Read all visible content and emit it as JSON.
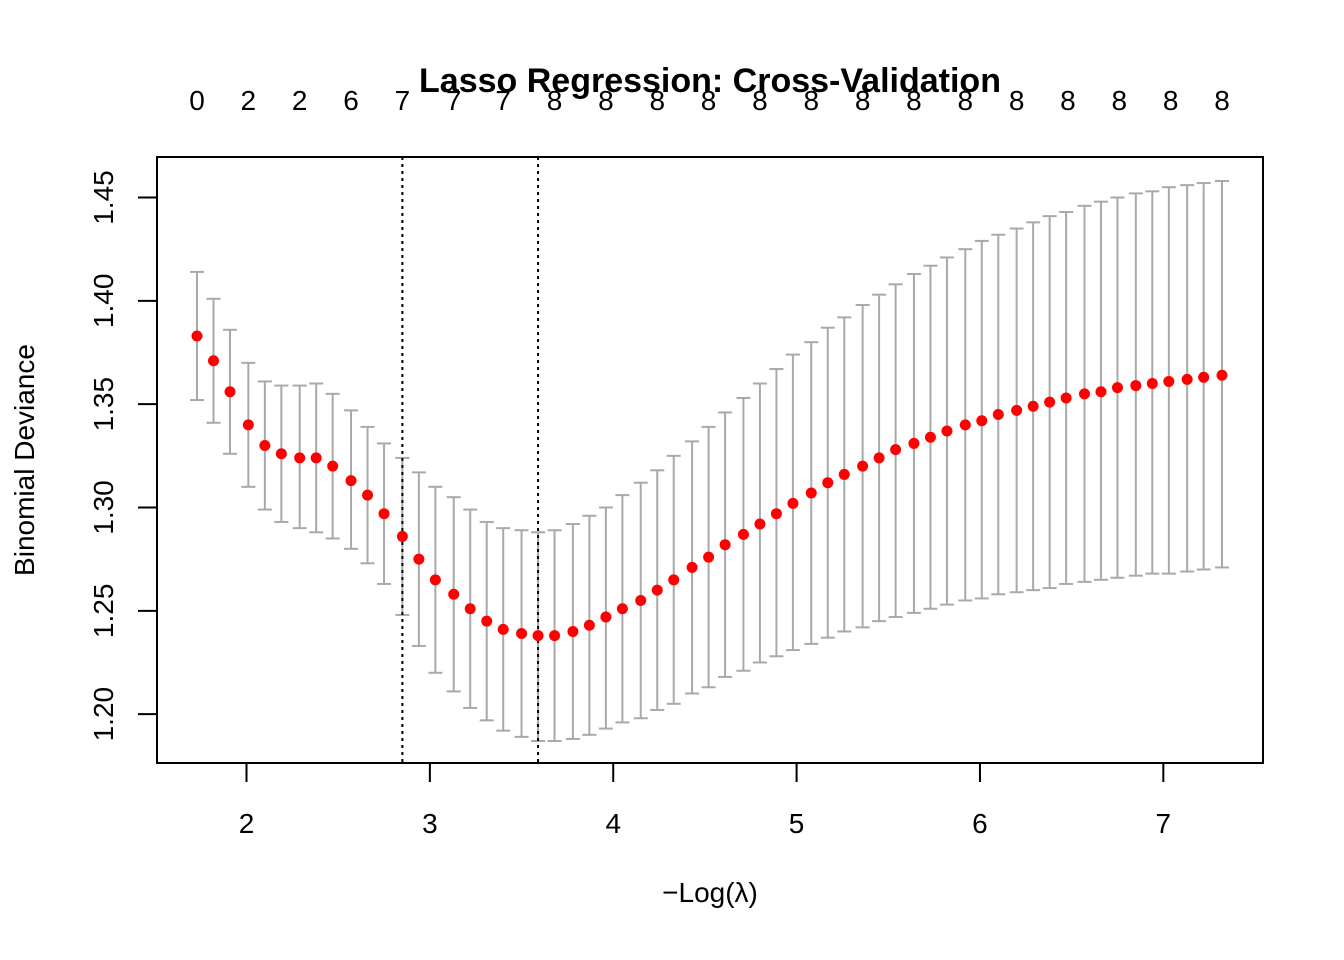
{
  "chart_data": {
    "type": "scatter",
    "title": "Lasso Regression: Cross-Validation",
    "xlabel": "−Log(λ)",
    "ylabel": "Binomial Deviance",
    "xlim": [
      1.73,
      7.32
    ],
    "ylim": [
      1.187,
      1.458
    ],
    "x_ticks": [
      2,
      3,
      4,
      5,
      6,
      7
    ],
    "x_tick_labels": [
      "2",
      "3",
      "4",
      "5",
      "6",
      "7"
    ],
    "y_ticks": [
      1.2,
      1.25,
      1.3,
      1.35,
      1.4,
      1.45
    ],
    "y_tick_labels": [
      "1.20",
      "1.25",
      "1.30",
      "1.35",
      "1.40",
      "1.45"
    ],
    "top_axis": {
      "x": [
        1.73,
        2.01,
        2.29,
        2.57,
        2.85,
        3.13,
        3.4,
        3.68,
        3.96,
        4.24,
        4.52,
        4.8,
        5.08,
        5.36,
        5.64,
        5.92,
        6.2,
        6.48,
        6.76,
        7.04,
        7.32
      ],
      "labels": [
        "0",
        "2",
        "2",
        "6",
        "7",
        "7",
        "7",
        "8",
        "8",
        "8",
        "8",
        "8",
        "8",
        "8",
        "8",
        "8",
        "8",
        "8",
        "8",
        "8",
        "8"
      ]
    },
    "vlines": [
      2.85,
      3.59
    ],
    "grid": false,
    "legend": "none",
    "colors": {
      "point": "#ff0000",
      "errorbar": "#a9a9a9",
      "vline": "#000000",
      "axis": "#000000"
    },
    "series": [
      {
        "x": [
          1.73,
          1.82,
          1.91,
          2.01,
          2.1,
          2.19,
          2.29,
          2.38,
          2.47,
          2.57,
          2.66,
          2.75,
          2.85,
          2.94,
          3.03,
          3.13,
          3.22,
          3.31,
          3.4,
          3.5,
          3.59,
          3.68,
          3.78,
          3.87,
          3.96,
          4.05,
          4.15,
          4.24,
          4.33,
          4.43,
          4.52,
          4.61,
          4.71,
          4.8,
          4.89,
          4.98,
          5.08,
          5.17,
          5.26,
          5.36,
          5.45,
          5.54,
          5.64,
          5.73,
          5.82,
          5.92,
          6.01,
          6.1,
          6.2,
          6.29,
          6.38,
          6.47,
          6.57,
          6.66,
          6.75,
          6.85,
          6.94,
          7.03,
          7.13,
          7.22,
          7.32
        ],
        "y": [
          1.383,
          1.371,
          1.356,
          1.34,
          1.33,
          1.326,
          1.324,
          1.324,
          1.32,
          1.313,
          1.306,
          1.297,
          1.286,
          1.275,
          1.265,
          1.258,
          1.251,
          1.245,
          1.241,
          1.239,
          1.238,
          1.238,
          1.24,
          1.243,
          1.247,
          1.251,
          1.255,
          1.26,
          1.265,
          1.271,
          1.276,
          1.282,
          1.287,
          1.292,
          1.297,
          1.302,
          1.307,
          1.312,
          1.316,
          1.32,
          1.324,
          1.328,
          1.331,
          1.334,
          1.337,
          1.34,
          1.342,
          1.345,
          1.347,
          1.349,
          1.351,
          1.353,
          1.355,
          1.356,
          1.358,
          1.359,
          1.36,
          1.361,
          1.362,
          1.363,
          1.364
        ],
        "upper": [
          1.414,
          1.401,
          1.386,
          1.37,
          1.361,
          1.359,
          1.359,
          1.36,
          1.355,
          1.347,
          1.339,
          1.331,
          1.324,
          1.317,
          1.31,
          1.305,
          1.299,
          1.293,
          1.29,
          1.289,
          1.288,
          1.289,
          1.292,
          1.296,
          1.3,
          1.306,
          1.312,
          1.318,
          1.325,
          1.332,
          1.339,
          1.346,
          1.353,
          1.36,
          1.367,
          1.374,
          1.38,
          1.387,
          1.392,
          1.398,
          1.403,
          1.408,
          1.413,
          1.417,
          1.421,
          1.425,
          1.429,
          1.432,
          1.435,
          1.438,
          1.441,
          1.443,
          1.446,
          1.448,
          1.45,
          1.452,
          1.453,
          1.455,
          1.456,
          1.457,
          1.458
        ],
        "lower": [
          1.352,
          1.341,
          1.326,
          1.31,
          1.299,
          1.293,
          1.29,
          1.288,
          1.285,
          1.28,
          1.273,
          1.263,
          1.248,
          1.233,
          1.22,
          1.211,
          1.203,
          1.197,
          1.192,
          1.189,
          1.187,
          1.187,
          1.188,
          1.19,
          1.193,
          1.196,
          1.198,
          1.202,
          1.205,
          1.21,
          1.213,
          1.218,
          1.221,
          1.225,
          1.228,
          1.231,
          1.234,
          1.237,
          1.24,
          1.242,
          1.245,
          1.247,
          1.249,
          1.251,
          1.253,
          1.255,
          1.256,
          1.258,
          1.259,
          1.26,
          1.261,
          1.263,
          1.264,
          1.265,
          1.266,
          1.267,
          1.268,
          1.268,
          1.269,
          1.27,
          1.271
        ]
      }
    ]
  }
}
